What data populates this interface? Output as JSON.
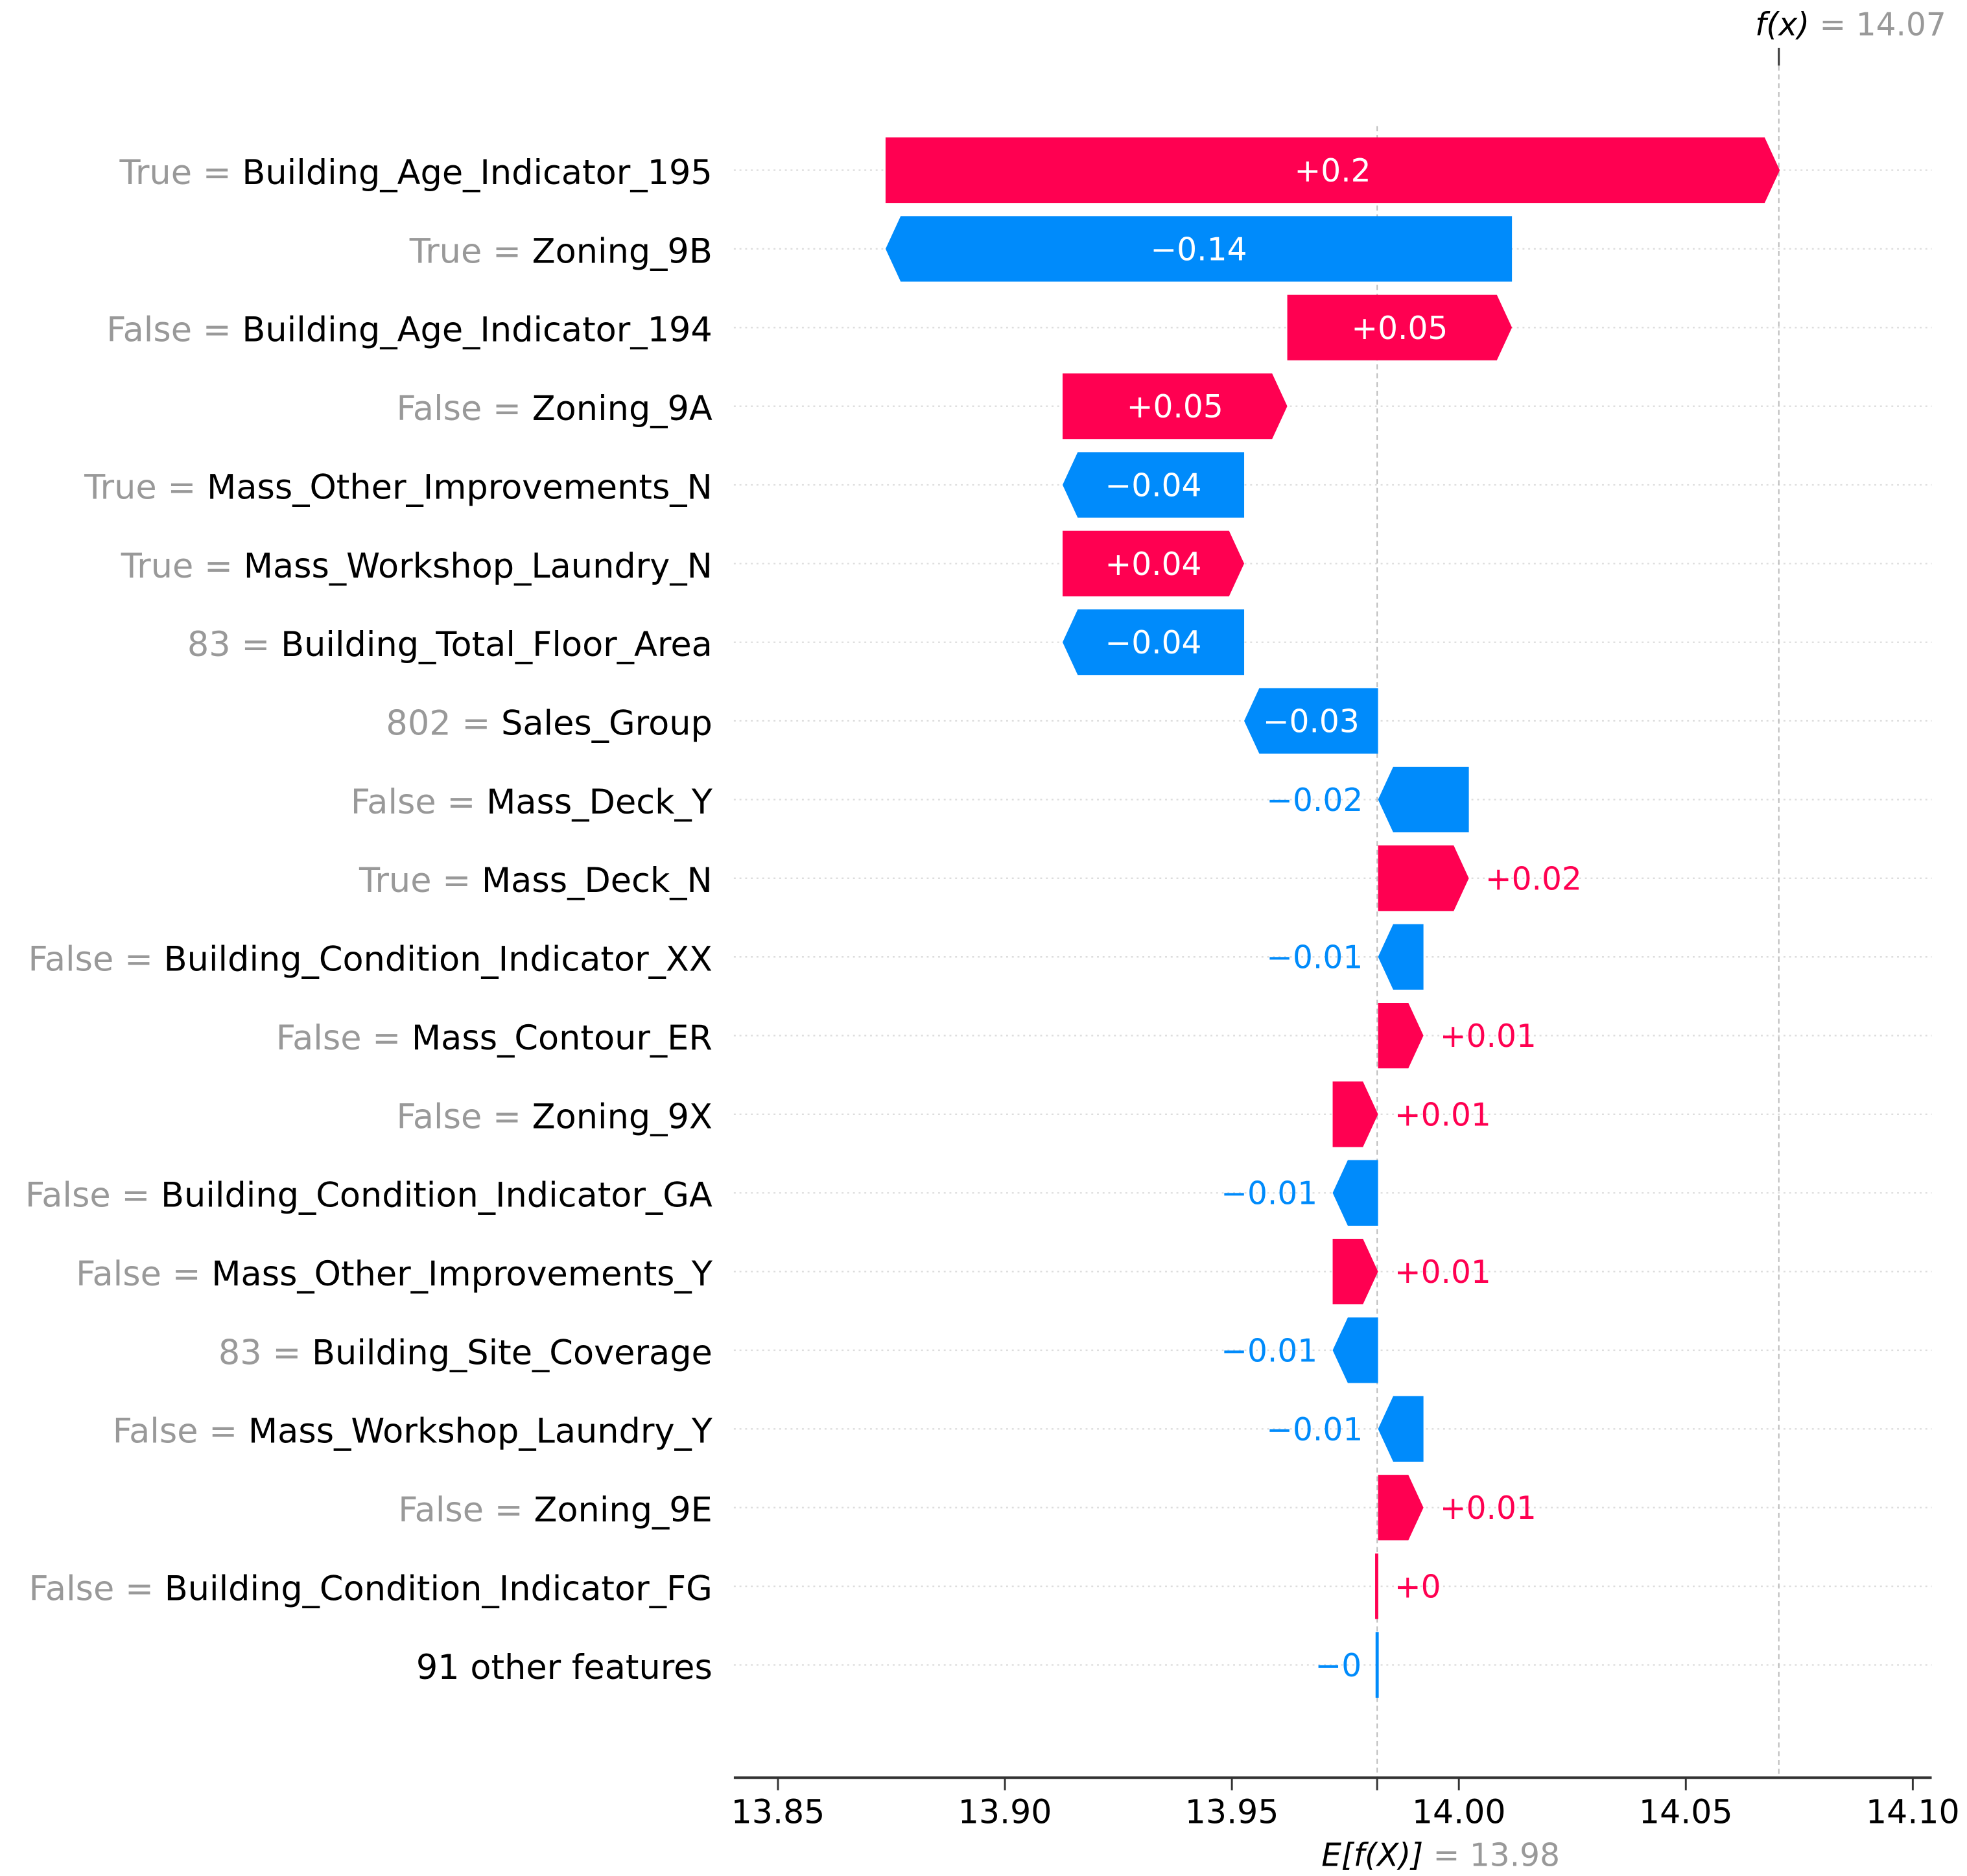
{
  "chart_data": {
    "type": "waterfall",
    "title": "",
    "xlim": [
      13.83,
      14.1
    ],
    "xticks": [
      "13.85",
      "13.90",
      "13.95",
      "14.00",
      "14.05",
      "14.10"
    ],
    "xtick_values": [
      13.85,
      13.9,
      13.95,
      14.0,
      14.05,
      14.1
    ],
    "base_value": 13.982,
    "base_label": "E[f(X)]",
    "base_value_text": "13.98",
    "output_value": 14.0705,
    "output_label": "f(x)",
    "output_value_text": "14.07",
    "equals": "=",
    "colors": {
      "positive": "#ff0051",
      "negative": "#008bfb",
      "value_gray": "#999999",
      "text": "#000000"
    },
    "features": [
      {
        "value": "True",
        "name": "Building_Age_Indicator_195",
        "shap": 0.197,
        "label": "+0.2"
      },
      {
        "value": "True",
        "name": "Zoning_9B",
        "shap": -0.138,
        "label": "−0.14"
      },
      {
        "value": "False",
        "name": "Building_Age_Indicator_194",
        "shap": 0.0495,
        "label": "+0.05"
      },
      {
        "value": "False",
        "name": "Zoning_9A",
        "shap": 0.0495,
        "label": "+0.05"
      },
      {
        "value": "True",
        "name": "Mass_Other_Improvements_N",
        "shap": -0.04,
        "label": "−0.04"
      },
      {
        "value": "True",
        "name": "Mass_Workshop_Laundry_N",
        "shap": 0.04,
        "label": "+0.04"
      },
      {
        "value": "83",
        "name": "Building_Total_Floor_Area",
        "shap": -0.04,
        "label": "−0.04"
      },
      {
        "value": "802",
        "name": "Sales_Group",
        "shap": -0.0295,
        "label": "−0.03"
      },
      {
        "value": "False",
        "name": "Mass_Deck_Y",
        "shap": -0.02,
        "label": "−0.02"
      },
      {
        "value": "True",
        "name": "Mass_Deck_N",
        "shap": 0.02,
        "label": "+0.02"
      },
      {
        "value": "False",
        "name": "Building_Condition_Indicator_XX",
        "shap": -0.01,
        "label": "−0.01"
      },
      {
        "value": "False",
        "name": "Mass_Contour_ER",
        "shap": 0.01,
        "label": "+0.01"
      },
      {
        "value": "False",
        "name": "Zoning_9X",
        "shap": 0.01,
        "label": "+0.01"
      },
      {
        "value": "False",
        "name": "Building_Condition_Indicator_GA",
        "shap": -0.01,
        "label": "−0.01"
      },
      {
        "value": "False",
        "name": "Mass_Other_Improvements_Y",
        "shap": 0.01,
        "label": "+0.01"
      },
      {
        "value": "83",
        "name": "Building_Site_Coverage",
        "shap": -0.01,
        "label": "−0.01"
      },
      {
        "value": "False",
        "name": "Mass_Workshop_Laundry_Y",
        "shap": -0.01,
        "label": "−0.01"
      },
      {
        "value": "False",
        "name": "Zoning_9E",
        "shap": 0.01,
        "label": "+0.01"
      },
      {
        "value": "False",
        "name": "Building_Condition_Indicator_FG",
        "shap": 0.0003,
        "label": "+0"
      },
      {
        "value": "",
        "name": "91 other features",
        "shap": -0.0001,
        "label": "−0"
      }
    ]
  }
}
